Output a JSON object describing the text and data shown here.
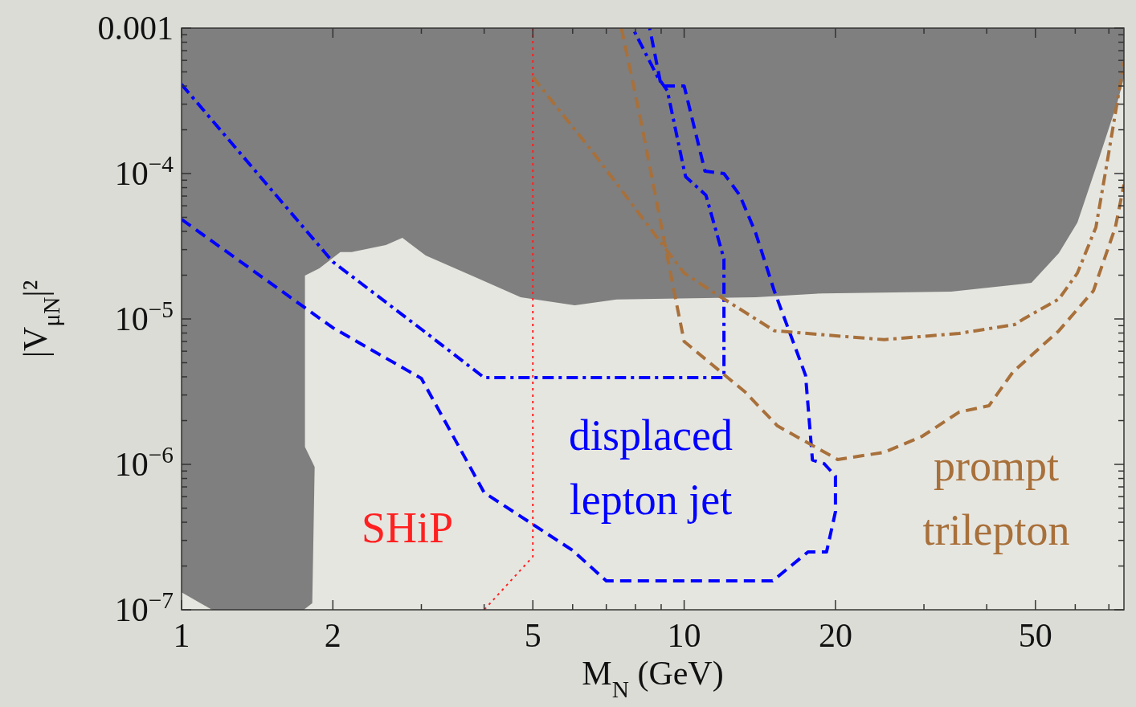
{
  "chart_data": {
    "type": "line",
    "xlabel": "M$_{N}$ (GeV)",
    "ylabel": "|V$_{μN}$|²",
    "log": "xy",
    "grid": false,
    "xlim": [
      1,
      75
    ],
    "ylim": [
      1e-07,
      0.001
    ],
    "xticks": [
      1,
      2,
      {
        "value": 3,
        "label": null
      },
      {
        "value": 4,
        "label": null
      },
      5,
      {
        "value": 6,
        "label": null
      },
      {
        "value": 7,
        "label": null
      },
      {
        "value": 8,
        "label": null
      },
      {
        "value": 9,
        "label": null
      },
      10,
      20,
      {
        "value": 30,
        "label": null
      },
      {
        "value": 40,
        "label": null
      },
      50,
      {
        "value": 60,
        "label": null
      },
      {
        "value": 70,
        "label": null
      }
    ],
    "yticks": [
      {
        "value": 1e-07,
        "label": "10$^{−7}$"
      },
      {
        "value": 2e-07,
        "label": null
      },
      {
        "value": 3e-07,
        "label": null
      },
      {
        "value": 4e-07,
        "label": null
      },
      {
        "value": 5e-07,
        "label": null
      },
      {
        "value": 6e-07,
        "label": null
      },
      {
        "value": 7e-07,
        "label": null
      },
      {
        "value": 8e-07,
        "label": null
      },
      {
        "value": 9e-07,
        "label": null
      },
      {
        "value": 1e-06,
        "label": "10$^{−6}$"
      },
      {
        "value": 2e-06,
        "label": null
      },
      {
        "value": 3e-06,
        "label": null
      },
      {
        "value": 4e-06,
        "label": null
      },
      {
        "value": 5e-06,
        "label": null
      },
      {
        "value": 6e-06,
        "label": null
      },
      {
        "value": 7e-06,
        "label": null
      },
      {
        "value": 8e-06,
        "label": null
      },
      {
        "value": 9e-06,
        "label": null
      },
      {
        "value": 1e-05,
        "label": "10$^{−5}$"
      },
      {
        "value": 2e-05,
        "label": null
      },
      {
        "value": 3e-05,
        "label": null
      },
      {
        "value": 4e-05,
        "label": null
      },
      {
        "value": 5e-05,
        "label": null
      },
      {
        "value": 6e-05,
        "label": null
      },
      {
        "value": 7e-05,
        "label": null
      },
      {
        "value": 8e-05,
        "label": null
      },
      {
        "value": 9e-05,
        "label": null
      },
      {
        "value": 0.0001,
        "label": "10$^{−4}$"
      },
      {
        "value": 0.0002,
        "label": null
      },
      {
        "value": 0.0003,
        "label": null
      },
      {
        "value": 0.0004,
        "label": null
      },
      {
        "value": 0.0005,
        "label": null
      },
      {
        "value": 0.0006,
        "label": null
      },
      {
        "value": 0.0007,
        "label": null
      },
      {
        "value": 0.0008,
        "label": null
      },
      {
        "value": 0.0009,
        "label": null
      },
      0.001
    ],
    "series": [
      {
        "type": "area",
        "color": "#7f7f7f",
        "x": [
          1,
          1.15,
          1.75,
          1.82,
          1.84,
          1.76,
          1.76,
          1.88,
          2.07,
          2.18,
          2.55,
          2.75,
          3.06,
          3.84,
          4.73,
          5,
          6.06,
          7.34,
          13.88,
          18.85,
          33.98,
          49.1,
          55.67,
          60.6,
          66.9,
          72.8,
          75
        ],
        "values": [
          null,
          null,
          null,
          null,
          null,
          null,
          null,
          null,
          null,
          null,
          null,
          null,
          null,
          null,
          null,
          null,
          null,
          null,
          null,
          null,
          null,
          null,
          null,
          null,
          null,
          null,
          null
        ],
        "lower": [
          1.32e-07,
          1e-07,
          1e-07,
          1.11e-07,
          9.6e-07,
          1.32e-06,
          1.99e-05,
          2.23e-05,
          2.88e-05,
          2.88e-05,
          3.22e-05,
          3.61e-05,
          2.73e-05,
          1.94e-05,
          1.41e-05,
          1.37e-05,
          1.24e-05,
          1.36e-05,
          1.41e-05,
          1.5e-05,
          1.54e-05,
          1.77e-05,
          2.84e-05,
          4.6e-05,
          0.000127,
          0.00031,
          0.000454
        ],
        "upper": [
          0.001,
          0.001,
          0.001,
          0.001,
          0.001,
          0.001,
          0.001,
          0.001,
          0.001,
          0.001,
          0.001,
          0.001,
          0.001,
          0.001,
          0.001,
          0.001,
          0.001,
          0.001,
          0.001,
          0.001,
          0.001,
          0.001,
          0.001,
          0.001,
          0.001,
          0.001,
          0.001
        ]
      },
      {
        "name": "SHiP",
        "color": "#ff2020",
        "line_style": "dotted",
        "x": [
          5,
          5,
          4
        ],
        "values": [
          0.001,
          2.32e-07,
          1e-07
        ]
      },
      {
        "name": "displaced lepton jet",
        "color": "#0000ff",
        "line_style": "dashed",
        "x": [
          1,
          2,
          3,
          4,
          6,
          7,
          15,
          17.64,
          19.2,
          20,
          20,
          19,
          18,
          17.44,
          15.11,
          13.88,
          12.9,
          12,
          11,
          10,
          9,
          8.54
        ],
        "values": [
          4.84e-05,
          8.7e-06,
          3.9e-06,
          6.4e-07,
          2.56e-07,
          1.58e-07,
          1.58e-07,
          2.5e-07,
          2.5e-07,
          4.72e-07,
          8.3e-07,
          1.01e-06,
          1.07e-06,
          4.1e-06,
          1.56e-05,
          3.9e-05,
          7.1e-05,
          0.0001,
          0.000104,
          0.0004,
          0.0004,
          0.001
        ]
      },
      {
        "color": "#0000ff",
        "line_style": "dashdot",
        "x": [
          1,
          2,
          3,
          4,
          12,
          12,
          11.05,
          10.07,
          10,
          9.26,
          8.86,
          7.9
        ],
        "values": [
          0.00041,
          2.47e-05,
          8.5e-06,
          3.95e-06,
          3.95e-06,
          2.59e-05,
          7.1e-05,
          9.5e-05,
          0.000105,
          0.000371,
          0.00046,
          0.001
        ]
      },
      {
        "name": "prompt trilepton",
        "color": "#a8703a",
        "line_style": "dashed",
        "x": [
          7.5,
          8.14,
          9.6,
          10,
          13.23,
          15.33,
          20.2,
          25,
          29.76,
          35.26,
          40.4,
          45.1,
          55.67,
          65.2,
          72.1,
          75
        ],
        "values": [
          0.001,
          0.000263,
          1.41e-05,
          7e-06,
          3.14e-06,
          1.84e-06,
          1.08e-06,
          1.21e-06,
          1.56e-06,
          2.29e-06,
          2.53e-06,
          4.32e-06,
          8.3e-06,
          1.56e-05,
          4.27e-05,
          8.4e-05
        ]
      },
      {
        "color": "#a8703a",
        "line_style": "dashdot",
        "x": [
          5,
          6.65,
          9.19,
          10,
          11.85,
          15.11,
          25,
          35.26,
          45.46,
          47.34,
          55.67,
          60.6,
          65.96,
          69.4,
          75
        ],
        "values": [
          0.00046,
          0.000134,
          3.03e-05,
          2.07e-05,
          1.41e-05,
          8.3e-06,
          7.2e-06,
          7.96e-06,
          9.15e-06,
          1e-05,
          1.37e-05,
          2.07e-05,
          4.27e-05,
          0.000118,
          0.000586
        ]
      }
    ]
  }
}
